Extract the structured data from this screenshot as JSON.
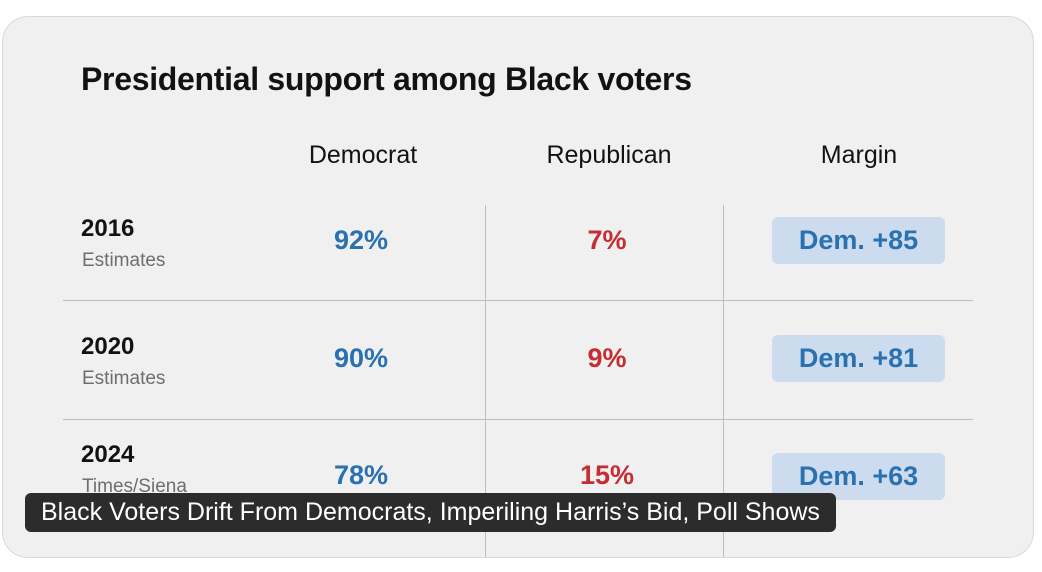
{
  "title": "Presidential support among Black voters",
  "columns": {
    "democrat": "Democrat",
    "republican": "Republican",
    "margin": "Margin"
  },
  "rows": [
    {
      "year": "2016",
      "source": "Estimates",
      "dem": "92%",
      "rep": "7%",
      "margin": "Dem. +85"
    },
    {
      "year": "2020",
      "source": "Estimates",
      "dem": "90%",
      "rep": "9%",
      "margin": "Dem. +81"
    },
    {
      "year": "2024",
      "source": "Times/Siena",
      "dem": "78%",
      "rep": "15%",
      "margin": "Dem. +63"
    }
  ],
  "caption": "Black Voters Drift From Democrats, Imperiling Harris’s Bid, Poll Shows",
  "colors": {
    "democrat": "#2a71b2",
    "republican": "#c62d32",
    "badge": "#ccdbee"
  }
}
